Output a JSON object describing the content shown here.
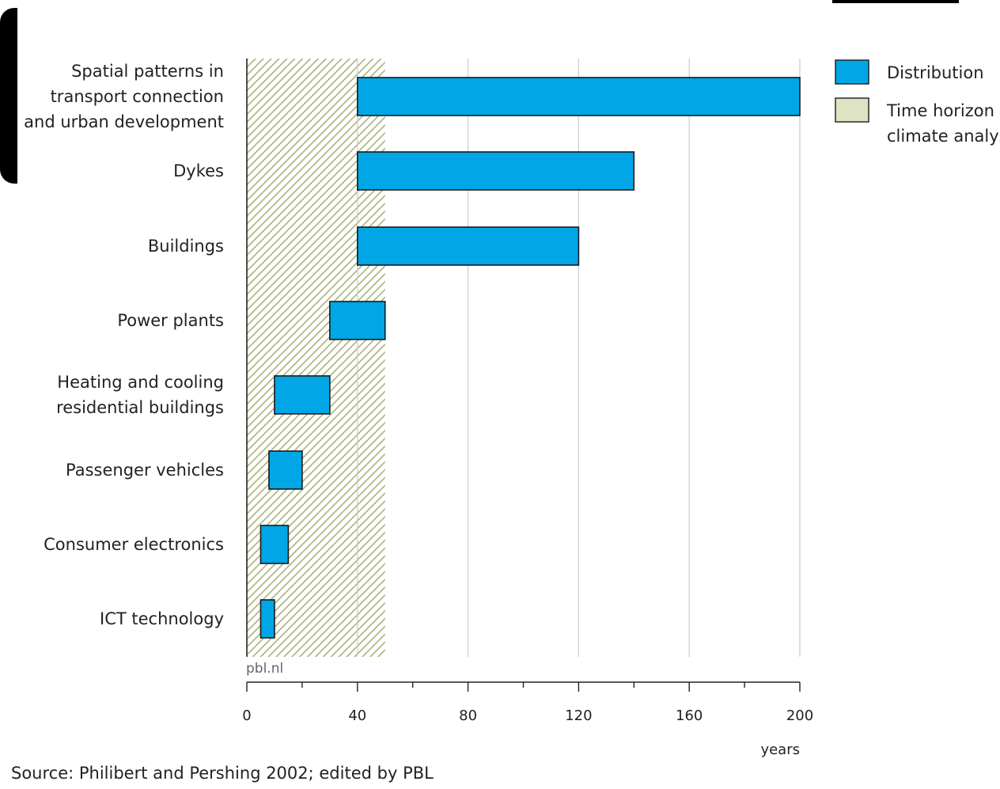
{
  "colors": {
    "bar": "#00a6e6",
    "bar_stroke": "#1a1a1a",
    "hatch_line": "#a9b27a",
    "hatch_bg": "#ffffff",
    "legend_time_horizon": "#dfe3c3",
    "grid": "#cccccc",
    "axis": "#222222"
  },
  "chart_data": {
    "type": "bar",
    "orientation": "horizontal",
    "categories": [
      [
        "Spatial patterns in",
        "transport connection",
        "and urban development"
      ],
      [
        "Dykes"
      ],
      [
        "Buildings"
      ],
      [
        "Power plants"
      ],
      [
        "Heating and cooling",
        "residential buildings"
      ],
      [
        "Passenger vehicles"
      ],
      [
        "Consumer electronics"
      ],
      [
        "ICT technology"
      ]
    ],
    "series": [
      {
        "name": "Distribution",
        "ranges": [
          [
            40,
            200
          ],
          [
            40,
            140
          ],
          [
            40,
            120
          ],
          [
            30,
            50
          ],
          [
            10,
            30
          ],
          [
            8,
            20
          ],
          [
            5,
            15
          ],
          [
            5,
            10
          ]
        ]
      }
    ],
    "time_horizon": {
      "name": "Time horizon climate analysis",
      "range": [
        0,
        50
      ]
    },
    "xlabel": "years",
    "xlim": [
      0,
      200
    ],
    "xticks": [
      0,
      40,
      80,
      120,
      160,
      200
    ],
    "minor_tick_step": 20,
    "grid": "vertical",
    "legend_position": "top-right",
    "watermark": "pbl.nl"
  },
  "legend": {
    "items": [
      {
        "label": [
          "Distribution"
        ],
        "icon": "blue-square"
      },
      {
        "label": [
          "Time horizon",
          "climate analysis"
        ],
        "icon": "beige-square"
      }
    ]
  },
  "source": "Source: Philibert and Pershing 2002; edited by PBL"
}
